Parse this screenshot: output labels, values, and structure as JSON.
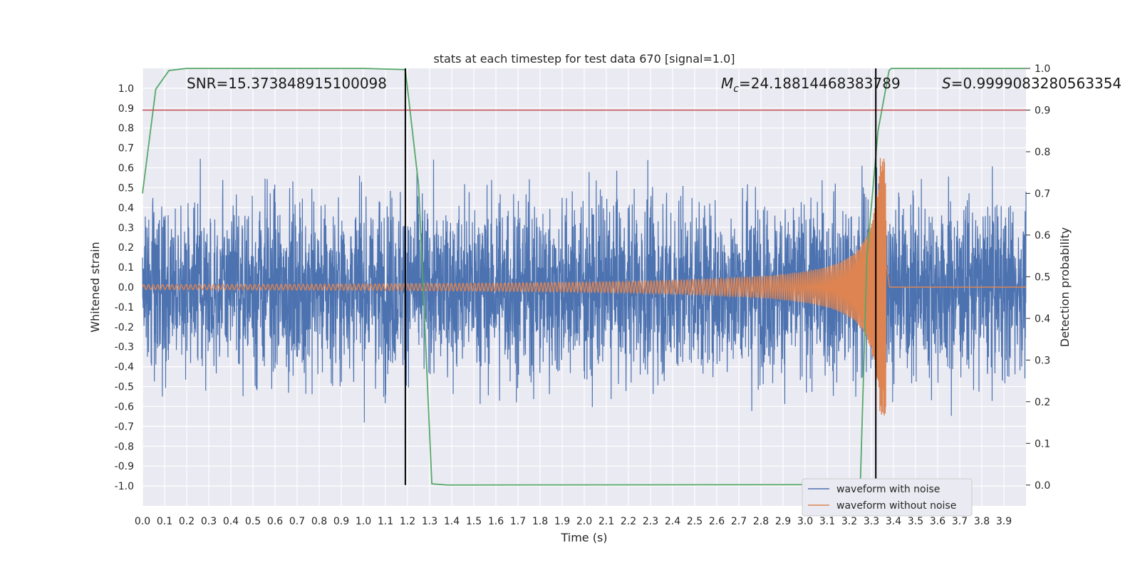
{
  "chart_data": {
    "type": "line",
    "title": "stats at each timestep for test data 670 [signal=1.0]",
    "xlabel": "Time (s)",
    "ylabel": "Whitened strain",
    "ylabel_right": "Detection probability",
    "xlim": [
      0.0,
      4.0
    ],
    "ylim": [
      -1.1,
      1.1
    ],
    "ylim_right": [
      -0.05,
      1.0
    ],
    "x_ticks": [
      "0.0",
      "0.1",
      "0.2",
      "0.3",
      "0.4",
      "0.5",
      "0.6",
      "0.7",
      "0.8",
      "0.9",
      "1.0",
      "1.1",
      "1.2",
      "1.3",
      "1.4",
      "1.5",
      "1.6",
      "1.7",
      "1.8",
      "1.9",
      "2.0",
      "2.1",
      "2.2",
      "2.3",
      "2.4",
      "2.5",
      "2.6",
      "2.7",
      "2.8",
      "2.9",
      "3.0",
      "3.1",
      "3.2",
      "3.3",
      "3.4",
      "3.5",
      "3.6",
      "3.7",
      "3.8",
      "3.9"
    ],
    "y_ticks": [
      "1.0",
      "0.9",
      "0.8",
      "0.7",
      "0.6",
      "0.5",
      "0.4",
      "0.3",
      "0.2",
      "0.1",
      "0.0",
      "-0.1",
      "-0.2",
      "-0.3",
      "-0.4",
      "-0.5",
      "-0.6",
      "-0.7",
      "-0.8",
      "-0.9",
      "-1.0"
    ],
    "y_ticks_right": [
      "1.0",
      "0.9",
      "0.8",
      "0.7",
      "0.6",
      "0.5",
      "0.4",
      "0.3",
      "0.2",
      "0.1",
      "0.0"
    ],
    "grid": true,
    "legend": "bottom-right",
    "series": [
      {
        "name": "waveform with noise",
        "color": "#4c72b0",
        "axis": "left",
        "noise_amplitude": 0.3,
        "x_range": [
          0.0,
          4.0
        ]
      },
      {
        "name": "waveform without noise",
        "color": "#dd8452",
        "axis": "left",
        "chirp_start_amplitude": 0.012,
        "chirp_peak_amplitude": 0.65,
        "merger_time": 3.37
      },
      {
        "color": "#55a868",
        "axis": "right",
        "x": [
          0.0,
          0.06,
          0.12,
          0.2,
          1.0,
          1.19,
          1.25,
          1.31,
          1.38,
          3.2,
          3.25,
          3.28,
          3.33,
          3.38,
          3.39,
          4.0
        ],
        "y": [
          0.7,
          0.95,
          0.995,
          1.0,
          1.0,
          0.997,
          0.72,
          0.003,
          0.0,
          0.001,
          0.003,
          0.55,
          0.85,
          0.995,
          1.0,
          1.0
        ]
      }
    ],
    "threshold_line": {
      "y_right": 0.9,
      "color": "#c44e52"
    },
    "vertical_lines": [
      {
        "x": 1.19
      },
      {
        "x": 3.32
      }
    ],
    "annotations": {
      "snr": "SNR=15.373848915100098",
      "mc_symbol": "M",
      "mc_sub": "c",
      "mc_value": "=24.18814468383789",
      "s_symbol": "S",
      "s_value": "=0.9999083280563354"
    }
  }
}
